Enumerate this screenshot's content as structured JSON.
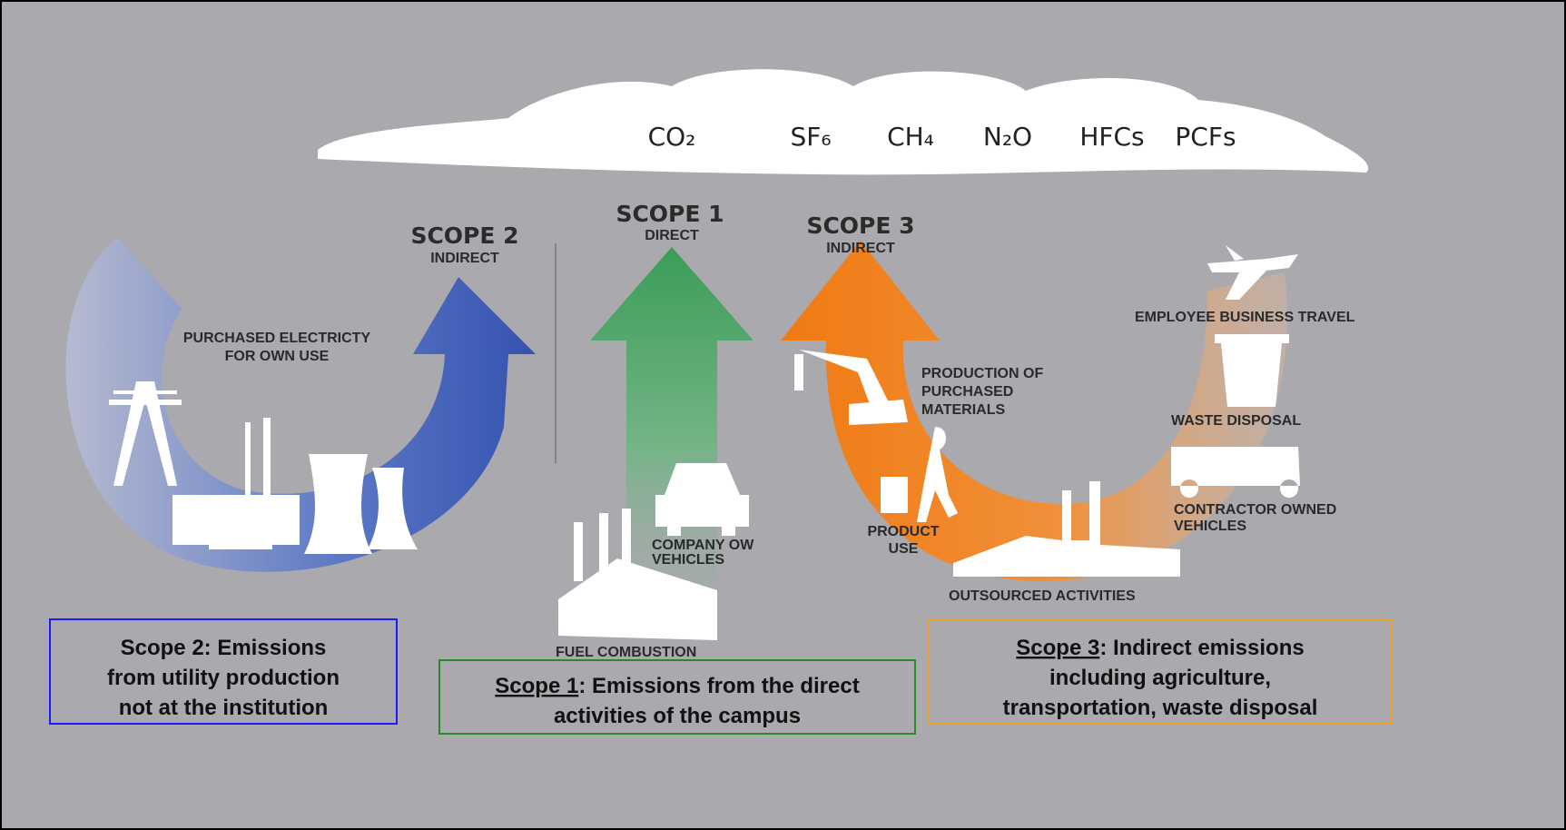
{
  "cloud": {
    "gases": [
      "CO₂",
      "SF₆",
      "CH₄",
      "N₂O",
      "HFCs",
      "PCFs"
    ]
  },
  "scopes": [
    {
      "title": "SCOPE 2",
      "subtitle": "INDIRECT"
    },
    {
      "title": "SCOPE 1",
      "subtitle": "DIRECT"
    },
    {
      "title": "SCOPE 3",
      "subtitle": "INDIRECT"
    }
  ],
  "labels": {
    "purchased_electricity": [
      "PURCHASED ELECTRICTY",
      "FOR OWN USE"
    ],
    "company_vehicles": [
      "COMPANY OW",
      "VEHICLES"
    ],
    "fuel_combustion": "FUEL COMBUSTION",
    "production": [
      "PRODUCTION OF",
      "PURCHASED",
      "MATERIALS"
    ],
    "product_use": [
      "PRODUCT",
      "USE"
    ],
    "outsourced": "OUTSOURCED ACTIVITIES",
    "business_travel": "EMPLOYEE BUSINESS TRAVEL",
    "waste": "WASTE DISPOSAL",
    "contractor": [
      "CONTRACTOR OWNED",
      "VEHICLES"
    ]
  },
  "boxes": [
    {
      "lines": [
        "Scope 2: Emissions",
        "from utility production",
        "not at the institution"
      ]
    },
    {
      "underlined": "Scope 1",
      "lines": [
        ": Emissions from the direct",
        "activities of the campus"
      ]
    },
    {
      "underlined": "Scope 3",
      "lines": [
        ": Indirect emissions",
        "including agriculture,",
        "transportation, waste disposal"
      ]
    }
  ]
}
